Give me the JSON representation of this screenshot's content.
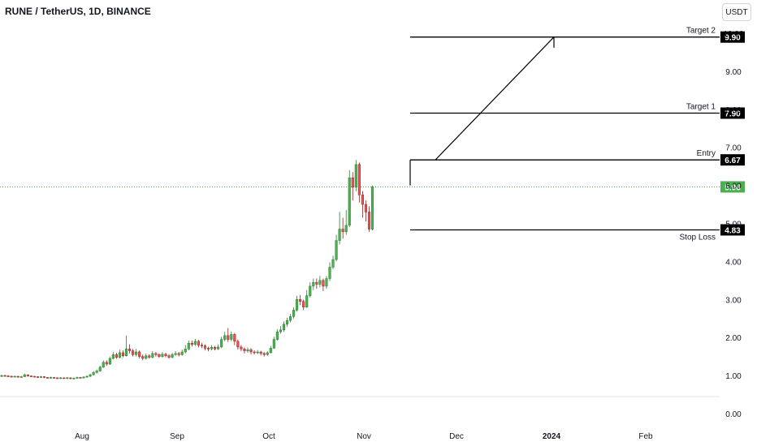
{
  "header": {
    "symbol_title": "RUNE / TetherUS, 1D, BINANCE",
    "currency_label": "USDT"
  },
  "colors": {
    "up": "#26a69a",
    "up_fill": "#4caf50",
    "down": "#ef5350",
    "line": "#000000",
    "last_price": "#4caf50",
    "price_tag_bg": "#000000"
  },
  "chart_data": {
    "type": "candlestick",
    "title": "RUNE / TetherUS, 1D, BINANCE",
    "x_ticks": [
      "Aug",
      "Sep",
      "Oct",
      "Nov",
      "Dec",
      "2024",
      "Feb"
    ],
    "y_ticks": [
      "0.00",
      "1.00",
      "2.00",
      "3.00",
      "4.00",
      "5.00",
      "6.00",
      "7.00",
      "8.00",
      "9.00",
      "10.00"
    ],
    "ylim": [
      0,
      10.3
    ],
    "last_price": 5.96,
    "levels": [
      {
        "label": "Target 2",
        "price": 9.9,
        "price_label": "9.90"
      },
      {
        "label": "Target 1",
        "price": 7.9,
        "price_label": "7.90"
      },
      {
        "label": "Entry",
        "price": 6.67,
        "price_label": "6.67"
      },
      {
        "label": "Stop Loss",
        "price": 4.83,
        "price_label": "4.83"
      }
    ],
    "last_price_label": "5.96",
    "candles": [
      [
        0.98,
        1.0,
        1.02,
        0.96
      ],
      [
        1.0,
        0.99,
        1.02,
        0.97
      ],
      [
        0.99,
        0.98,
        1.01,
        0.96
      ],
      [
        0.98,
        0.97,
        1.0,
        0.95
      ],
      [
        0.97,
        0.98,
        1.0,
        0.95
      ],
      [
        0.98,
        0.96,
        0.99,
        0.94
      ],
      [
        0.96,
        0.97,
        0.99,
        0.94
      ],
      [
        0.97,
        1.02,
        1.05,
        0.96
      ],
      [
        1.02,
        0.99,
        1.03,
        0.97
      ],
      [
        0.99,
        0.98,
        1.0,
        0.96
      ],
      [
        0.98,
        0.97,
        0.99,
        0.95
      ],
      [
        0.97,
        0.96,
        0.98,
        0.94
      ],
      [
        0.96,
        0.97,
        0.99,
        0.94
      ],
      [
        0.97,
        0.95,
        0.98,
        0.93
      ],
      [
        0.95,
        0.94,
        0.96,
        0.92
      ],
      [
        0.94,
        0.95,
        0.97,
        0.92
      ],
      [
        0.95,
        0.94,
        0.96,
        0.92
      ],
      [
        0.94,
        0.93,
        0.95,
        0.91
      ],
      [
        0.93,
        0.94,
        0.96,
        0.91
      ],
      [
        0.94,
        0.93,
        0.95,
        0.91
      ],
      [
        0.93,
        0.94,
        0.96,
        0.91
      ],
      [
        0.94,
        0.92,
        0.95,
        0.9
      ],
      [
        0.92,
        0.93,
        0.95,
        0.9
      ],
      [
        0.93,
        0.95,
        0.97,
        0.91
      ],
      [
        0.95,
        0.94,
        0.96,
        0.92
      ],
      [
        0.94,
        0.96,
        0.98,
        0.92
      ],
      [
        0.96,
        0.98,
        1.0,
        0.94
      ],
      [
        0.98,
        1.02,
        1.05,
        0.96
      ],
      [
        1.02,
        1.08,
        1.12,
        1.0
      ],
      [
        1.08,
        1.12,
        1.16,
        1.05
      ],
      [
        1.12,
        1.22,
        1.26,
        1.1
      ],
      [
        1.22,
        1.35,
        1.4,
        1.2
      ],
      [
        1.35,
        1.3,
        1.4,
        1.25
      ],
      [
        1.3,
        1.45,
        1.5,
        1.28
      ],
      [
        1.45,
        1.55,
        1.62,
        1.42
      ],
      [
        1.55,
        1.48,
        1.6,
        1.44
      ],
      [
        1.48,
        1.6,
        1.68,
        1.45
      ],
      [
        1.6,
        1.52,
        1.66,
        1.48
      ],
      [
        1.52,
        1.7,
        2.05,
        1.5
      ],
      [
        1.7,
        1.65,
        1.82,
        1.58
      ],
      [
        1.65,
        1.55,
        1.7,
        1.5
      ],
      [
        1.55,
        1.62,
        1.7,
        1.5
      ],
      [
        1.62,
        1.5,
        1.66,
        1.45
      ],
      [
        1.5,
        1.45,
        1.55,
        1.4
      ],
      [
        1.45,
        1.52,
        1.58,
        1.42
      ],
      [
        1.52,
        1.48,
        1.56,
        1.44
      ],
      [
        1.48,
        1.58,
        1.64,
        1.45
      ],
      [
        1.58,
        1.55,
        1.62,
        1.5
      ],
      [
        1.55,
        1.5,
        1.58,
        1.46
      ],
      [
        1.5,
        1.56,
        1.62,
        1.47
      ],
      [
        1.56,
        1.52,
        1.6,
        1.48
      ],
      [
        1.52,
        1.48,
        1.56,
        1.44
      ],
      [
        1.48,
        1.55,
        1.6,
        1.45
      ],
      [
        1.55,
        1.58,
        1.64,
        1.52
      ],
      [
        1.58,
        1.55,
        1.62,
        1.5
      ],
      [
        1.55,
        1.62,
        1.68,
        1.52
      ],
      [
        1.62,
        1.7,
        1.8,
        1.58
      ],
      [
        1.7,
        1.85,
        1.92,
        1.66
      ],
      [
        1.85,
        1.82,
        1.92,
        1.76
      ],
      [
        1.82,
        1.9,
        1.96,
        1.78
      ],
      [
        1.9,
        1.8,
        1.94,
        1.74
      ],
      [
        1.8,
        1.78,
        1.86,
        1.72
      ],
      [
        1.78,
        1.72,
        1.82,
        1.66
      ],
      [
        1.72,
        1.7,
        1.76,
        1.64
      ],
      [
        1.7,
        1.74,
        1.8,
        1.66
      ],
      [
        1.74,
        1.7,
        1.78,
        1.66
      ],
      [
        1.7,
        1.75,
        1.82,
        1.67
      ],
      [
        1.75,
        1.95,
        2.02,
        1.72
      ],
      [
        1.95,
        2.05,
        2.15,
        1.9
      ],
      [
        2.05,
        1.95,
        2.25,
        1.88
      ],
      [
        1.95,
        2.08,
        2.16,
        1.9
      ],
      [
        2.08,
        1.9,
        2.12,
        1.8
      ],
      [
        1.9,
        1.75,
        1.95,
        1.68
      ],
      [
        1.75,
        1.7,
        1.8,
        1.64
      ],
      [
        1.7,
        1.65,
        1.74,
        1.58
      ],
      [
        1.65,
        1.68,
        1.74,
        1.6
      ],
      [
        1.68,
        1.62,
        1.72,
        1.56
      ],
      [
        1.62,
        1.6,
        1.66,
        1.55
      ],
      [
        1.6,
        1.62,
        1.67,
        1.56
      ],
      [
        1.62,
        1.58,
        1.65,
        1.53
      ],
      [
        1.58,
        1.55,
        1.62,
        1.5
      ],
      [
        1.55,
        1.6,
        1.64,
        1.52
      ],
      [
        1.6,
        1.72,
        1.78,
        1.58
      ],
      [
        1.72,
        1.95,
        2.02,
        1.7
      ],
      [
        1.95,
        2.15,
        2.22,
        1.92
      ],
      [
        2.15,
        2.2,
        2.3,
        2.1
      ],
      [
        2.2,
        2.35,
        2.42,
        2.15
      ],
      [
        2.35,
        2.45,
        2.52,
        2.28
      ],
      [
        2.45,
        2.55,
        2.62,
        2.4
      ],
      [
        2.55,
        2.72,
        2.8,
        2.5
      ],
      [
        2.72,
        3.0,
        3.1,
        2.68
      ],
      [
        3.0,
        2.95,
        3.12,
        2.85
      ],
      [
        2.95,
        2.8,
        3.0,
        2.72
      ],
      [
        2.8,
        3.1,
        3.25,
        2.78
      ],
      [
        3.1,
        3.35,
        3.45,
        3.05
      ],
      [
        3.35,
        3.45,
        3.55,
        3.25
      ],
      [
        3.45,
        3.4,
        3.55,
        3.28
      ],
      [
        3.4,
        3.5,
        3.62,
        3.32
      ],
      [
        3.5,
        3.35,
        3.55,
        3.22
      ],
      [
        3.35,
        3.55,
        3.62,
        3.28
      ],
      [
        3.55,
        3.85,
        3.98,
        3.48
      ],
      [
        3.85,
        4.05,
        4.15,
        3.8
      ],
      [
        4.05,
        4.55,
        4.7,
        4.0
      ],
      [
        4.55,
        4.85,
        5.3,
        4.45
      ],
      [
        4.85,
        4.78,
        5.15,
        4.6
      ],
      [
        4.78,
        4.95,
        5.35,
        4.7
      ],
      [
        4.95,
        6.2,
        6.4,
        4.9
      ],
      [
        6.2,
        5.95,
        6.35,
        5.6
      ],
      [
        5.95,
        6.55,
        6.67,
        5.85
      ],
      [
        6.55,
        5.75,
        6.6,
        5.55
      ],
      [
        5.75,
        5.5,
        5.85,
        5.15
      ],
      [
        5.5,
        5.3,
        5.6,
        5.05
      ],
      [
        5.3,
        4.85,
        5.45,
        4.78
      ],
      [
        4.85,
        5.96,
        6.0,
        4.82
      ]
    ]
  }
}
